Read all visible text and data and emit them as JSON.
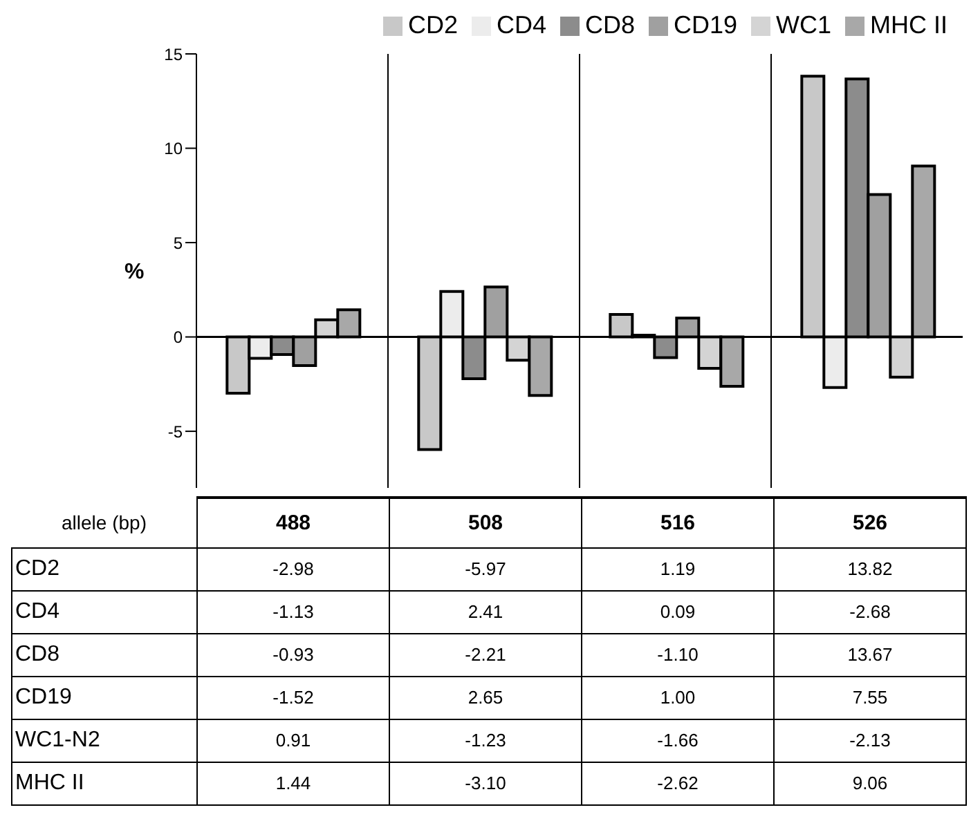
{
  "chart_data": {
    "type": "bar",
    "ylabel": "%",
    "xlabel": "allele (bp)",
    "categories": [
      "488",
      "508",
      "516",
      "526"
    ],
    "y_categories": [
      "CD2",
      "CD4",
      "CD8",
      "CD19",
      "WC1-N2",
      "MHC II"
    ],
    "series": [
      {
        "name": "CD2",
        "color": "#c8c8c8",
        "values": [
          -2.98,
          -5.97,
          1.19,
          13.82
        ],
        "value_labels": [
          "-2.98",
          "-5.97",
          "1.19",
          "13.82"
        ]
      },
      {
        "name": "CD4",
        "color": "#ececec",
        "values": [
          -1.13,
          2.41,
          0.09,
          -2.68
        ],
        "value_labels": [
          "-1.13",
          "2.41",
          "0.09",
          "-2.68"
        ]
      },
      {
        "name": "CD8",
        "color": "#8c8c8c",
        "values": [
          -0.93,
          -2.21,
          -1.1,
          13.67
        ],
        "value_labels": [
          "-0.93",
          "-2.21",
          "-1.10",
          "13.67"
        ]
      },
      {
        "name": "CD19",
        "color": "#a0a0a0",
        "values": [
          -1.52,
          2.65,
          1.0,
          7.55
        ],
        "value_labels": [
          "-1.52",
          "2.65",
          "1.00",
          "7.55"
        ]
      },
      {
        "name": "WC1",
        "color": "#d4d4d4",
        "values": [
          0.91,
          -1.23,
          -1.66,
          -2.13
        ],
        "value_labels": [
          "0.91",
          "-1.23",
          "-1.66",
          "-2.13"
        ]
      },
      {
        "name": "MHC II",
        "color": "#a8a8a8",
        "values": [
          1.44,
          -3.1,
          -2.62,
          9.06
        ],
        "value_labels": [
          "1.44",
          "-3.10",
          "-2.62",
          "9.06"
        ]
      }
    ],
    "ylim": [
      -8,
      15
    ],
    "yticks": [
      -5,
      0,
      5,
      10,
      15
    ],
    "grid": "x",
    "legend": "top"
  }
}
